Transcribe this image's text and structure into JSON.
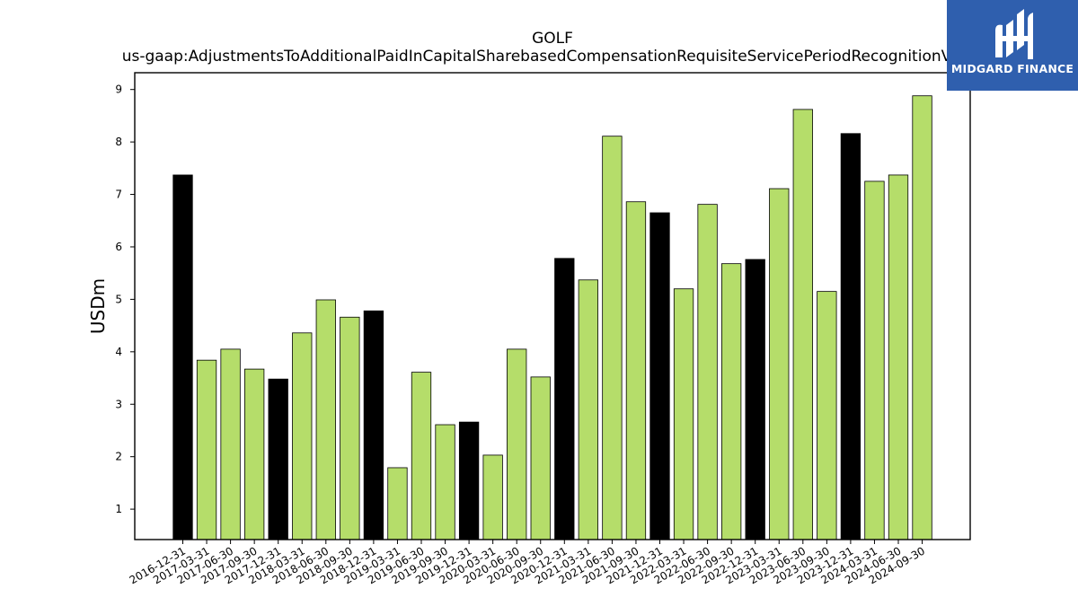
{
  "chart_data": {
    "type": "bar",
    "title": "GOLF",
    "subtitle": "us-gaap:AdjustmentsToAdditionalPaidInCapitalSharebasedCompensationRequisiteServicePeriodRecognitionValue",
    "xlabel": "",
    "ylabel": "USDm",
    "ylim": [
      0.42,
      9.32
    ],
    "yticks": [
      1,
      2,
      3,
      4,
      5,
      6,
      7,
      8,
      9
    ],
    "grid": false,
    "colors": {
      "quarter": "#b5dd6a",
      "year_end": "#000000",
      "edge": "#000000"
    },
    "categories": [
      "2016-12-31",
      "2017-03-31",
      "2017-06-30",
      "2017-09-30",
      "2017-12-31",
      "2018-03-31",
      "2018-06-30",
      "2018-09-30",
      "2018-12-31",
      "2019-03-31",
      "2019-06-30",
      "2019-09-30",
      "2019-12-31",
      "2020-03-31",
      "2020-06-30",
      "2020-09-30",
      "2020-12-31",
      "2021-03-31",
      "2021-06-30",
      "2021-09-30",
      "2021-12-31",
      "2022-03-31",
      "2022-06-30",
      "2022-09-30",
      "2022-12-31",
      "2023-03-31",
      "2023-06-30",
      "2023-09-30",
      "2023-12-31",
      "2024-03-31",
      "2024-06-30",
      "2024-09-30"
    ],
    "values": [
      7.37,
      3.84,
      4.05,
      3.67,
      3.48,
      4.36,
      4.99,
      4.66,
      4.78,
      1.79,
      3.61,
      2.61,
      2.66,
      2.03,
      4.05,
      3.52,
      5.78,
      5.37,
      8.11,
      6.86,
      6.65,
      5.2,
      6.81,
      5.68,
      5.76,
      7.11,
      8.62,
      5.15,
      8.16,
      7.25,
      7.37,
      8.88
    ]
  },
  "logo": {
    "text": "MIDGARD FINANCE",
    "icon": "midgard-logo-icon"
  }
}
